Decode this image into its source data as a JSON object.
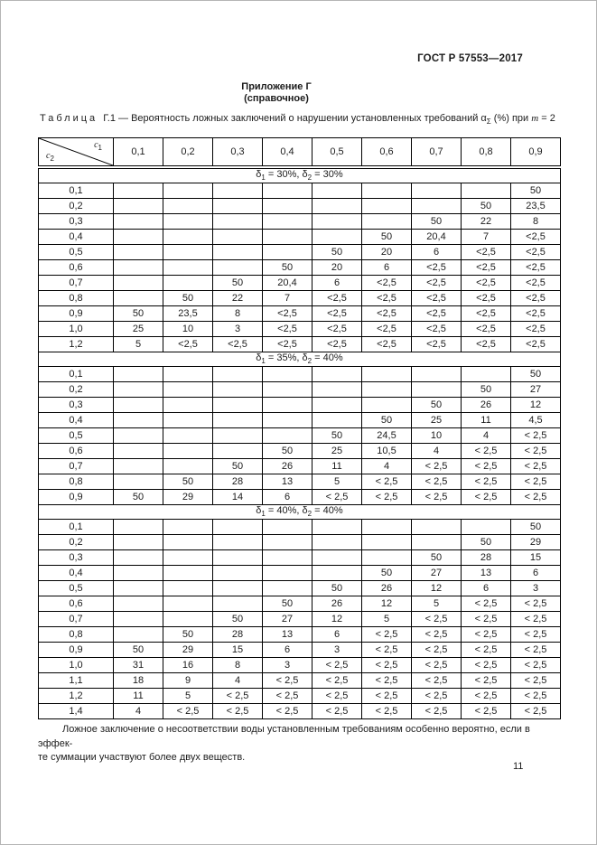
{
  "header": {
    "doc_number": "ГОСТ Р 57553—2017",
    "appendix_title": "Приложение Г",
    "appendix_subtitle": "(справочное)"
  },
  "caption": {
    "parts": [
      {
        "text": "Таблица ",
        "style": "spaced"
      },
      {
        "text": "Г.1 — ",
        "style": ""
      },
      {
        "text": "Вероятность ложных заключений о нарушении установленных требований α",
        "style": ""
      },
      {
        "text": "Σ",
        "style": "sub"
      },
      {
        "text": " (%) при ",
        "style": ""
      },
      {
        "text": "m",
        "style": "italic"
      },
      {
        "text": " = 2",
        "style": ""
      }
    ]
  },
  "table": {
    "corner_top": [
      {
        "text": "c",
        "style": "italic"
      },
      {
        "text": "1",
        "style": "sub"
      }
    ],
    "corner_bottom": [
      {
        "text": "c",
        "style": "italic"
      },
      {
        "text": "2",
        "style": "sub"
      }
    ],
    "columns": [
      "0,1",
      "0,2",
      "0,3",
      "0,4",
      "0,5",
      "0,6",
      "0,7",
      "0,8",
      "0,9"
    ],
    "sections": [
      {
        "banner": [
          {
            "text": "δ",
            "style": ""
          },
          {
            "text": "1",
            "style": "sub"
          },
          {
            "text": " = 30%, δ",
            "style": ""
          },
          {
            "text": "2",
            "style": "sub"
          },
          {
            "text": " = 30%",
            "style": ""
          }
        ],
        "rows": [
          {
            "c2": "0,1",
            "values": [
              "",
              "",
              "",
              "",
              "",
              "",
              "",
              "",
              "50"
            ]
          },
          {
            "c2": "0,2",
            "values": [
              "",
              "",
              "",
              "",
              "",
              "",
              "",
              "50",
              "23,5"
            ]
          },
          {
            "c2": "0,3",
            "values": [
              "",
              "",
              "",
              "",
              "",
              "",
              "50",
              "22",
              "8"
            ]
          },
          {
            "c2": "0,4",
            "values": [
              "",
              "",
              "",
              "",
              "",
              "50",
              "20,4",
              "7",
              "<2,5"
            ]
          },
          {
            "c2": "0,5",
            "values": [
              "",
              "",
              "",
              "",
              "50",
              "20",
              "6",
              "<2,5",
              "<2,5"
            ]
          },
          {
            "c2": "0,6",
            "values": [
              "",
              "",
              "",
              "50",
              "20",
              "6",
              "<2,5",
              "<2,5",
              "<2,5"
            ]
          },
          {
            "c2": "0,7",
            "values": [
              "",
              "",
              "50",
              "20,4",
              "6",
              "<2,5",
              "<2,5",
              "<2,5",
              "<2,5"
            ]
          },
          {
            "c2": "0,8",
            "values": [
              "",
              "50",
              "22",
              "7",
              "<2,5",
              "<2,5",
              "<2,5",
              "<2,5",
              "<2,5"
            ]
          },
          {
            "c2": "0,9",
            "values": [
              "50",
              "23,5",
              "8",
              "<2,5",
              "<2,5",
              "<2,5",
              "<2,5",
              "<2,5",
              "<2,5"
            ]
          },
          {
            "c2": "1,0",
            "values": [
              "25",
              "10",
              "3",
              "<2,5",
              "<2,5",
              "<2,5",
              "<2,5",
              "<2,5",
              "<2,5"
            ]
          },
          {
            "c2": "1,2",
            "values": [
              "5",
              "<2,5",
              "<2,5",
              "<2,5",
              "<2,5",
              "<2,5",
              "<2,5",
              "<2,5",
              "<2,5"
            ]
          }
        ]
      },
      {
        "banner": [
          {
            "text": "δ",
            "style": ""
          },
          {
            "text": "1",
            "style": "sub"
          },
          {
            "text": " = 35%, δ",
            "style": ""
          },
          {
            "text": "2",
            "style": "sub"
          },
          {
            "text": " = 40%",
            "style": ""
          }
        ],
        "rows": [
          {
            "c2": "0,1",
            "values": [
              "",
              "",
              "",
              "",
              "",
              "",
              "",
              "",
              "50"
            ]
          },
          {
            "c2": "0,2",
            "values": [
              "",
              "",
              "",
              "",
              "",
              "",
              "",
              "50",
              "27"
            ]
          },
          {
            "c2": "0,3",
            "values": [
              "",
              "",
              "",
              "",
              "",
              "",
              "50",
              "26",
              "12"
            ]
          },
          {
            "c2": "0,4",
            "values": [
              "",
              "",
              "",
              "",
              "",
              "50",
              "25",
              "11",
              "4,5"
            ]
          },
          {
            "c2": "0,5",
            "values": [
              "",
              "",
              "",
              "",
              "50",
              "24,5",
              "10",
              "4",
              "< 2,5"
            ]
          },
          {
            "c2": "0,6",
            "values": [
              "",
              "",
              "",
              "50",
              "25",
              "10,5",
              "4",
              "< 2,5",
              "< 2,5"
            ]
          },
          {
            "c2": "0,7",
            "values": [
              "",
              "",
              "50",
              "26",
              "11",
              "4",
              "< 2,5",
              "< 2,5",
              "< 2,5"
            ]
          },
          {
            "c2": "0,8",
            "values": [
              "",
              "50",
              "28",
              "13",
              "5",
              "< 2,5",
              "< 2,5",
              "< 2,5",
              "< 2,5"
            ]
          },
          {
            "c2": "0,9",
            "values": [
              "50",
              "29",
              "14",
              "6",
              "< 2,5",
              "< 2,5",
              "< 2,5",
              "< 2,5",
              "< 2,5"
            ]
          }
        ]
      },
      {
        "banner": [
          {
            "text": "δ",
            "style": ""
          },
          {
            "text": "1",
            "style": "sub"
          },
          {
            "text": " = 40%, δ",
            "style": ""
          },
          {
            "text": "2",
            "style": "sub"
          },
          {
            "text": " = 40%",
            "style": ""
          }
        ],
        "rows": [
          {
            "c2": "0,1",
            "values": [
              "",
              "",
              "",
              "",
              "",
              "",
              "",
              "",
              "50"
            ]
          },
          {
            "c2": "0,2",
            "values": [
              "",
              "",
              "",
              "",
              "",
              "",
              "",
              "50",
              "29"
            ]
          },
          {
            "c2": "0,3",
            "values": [
              "",
              "",
              "",
              "",
              "",
              "",
              "50",
              "28",
              "15"
            ]
          },
          {
            "c2": "0,4",
            "values": [
              "",
              "",
              "",
              "",
              "",
              "50",
              "27",
              "13",
              "6"
            ]
          },
          {
            "c2": "0,5",
            "values": [
              "",
              "",
              "",
              "",
              "50",
              "26",
              "12",
              "6",
              "3"
            ]
          },
          {
            "c2": "0,6",
            "values": [
              "",
              "",
              "",
              "50",
              "26",
              "12",
              "5",
              "< 2,5",
              "< 2,5"
            ]
          },
          {
            "c2": "0,7",
            "values": [
              "",
              "",
              "50",
              "27",
              "12",
              "5",
              "< 2,5",
              "< 2,5",
              "< 2,5"
            ]
          },
          {
            "c2": "0,8",
            "values": [
              "",
              "50",
              "28",
              "13",
              "6",
              "< 2,5",
              "< 2,5",
              "< 2,5",
              "< 2,5"
            ]
          },
          {
            "c2": "0,9",
            "values": [
              "50",
              "29",
              "15",
              "6",
              "3",
              "< 2,5",
              "< 2,5",
              "< 2,5",
              "< 2,5"
            ]
          },
          {
            "c2": "1,0",
            "values": [
              "31",
              "16",
              "8",
              "3",
              "< 2,5",
              "< 2,5",
              "< 2,5",
              "< 2,5",
              "< 2,5"
            ]
          },
          {
            "c2": "1,1",
            "values": [
              "18",
              "9",
              "4",
              "< 2,5",
              "< 2,5",
              "< 2,5",
              "< 2,5",
              "< 2,5",
              "< 2,5"
            ]
          },
          {
            "c2": "1,2",
            "values": [
              "11",
              "5",
              "< 2,5",
              "< 2,5",
              "< 2,5",
              "< 2,5",
              "< 2,5",
              "< 2,5",
              "< 2,5"
            ]
          },
          {
            "c2": "1,4",
            "values": [
              "4",
              "< 2,5",
              "< 2,5",
              "< 2,5",
              "< 2,5",
              "< 2,5",
              "< 2,5",
              "< 2,5",
              "< 2,5"
            ]
          }
        ]
      }
    ]
  },
  "footnote": {
    "text": "Ложное заключение о несоответствии воды установленным требованиям особенно вероятно, если в эффек-\nте суммации участвуют более двух веществ."
  },
  "footer": {
    "page_number": "11"
  }
}
